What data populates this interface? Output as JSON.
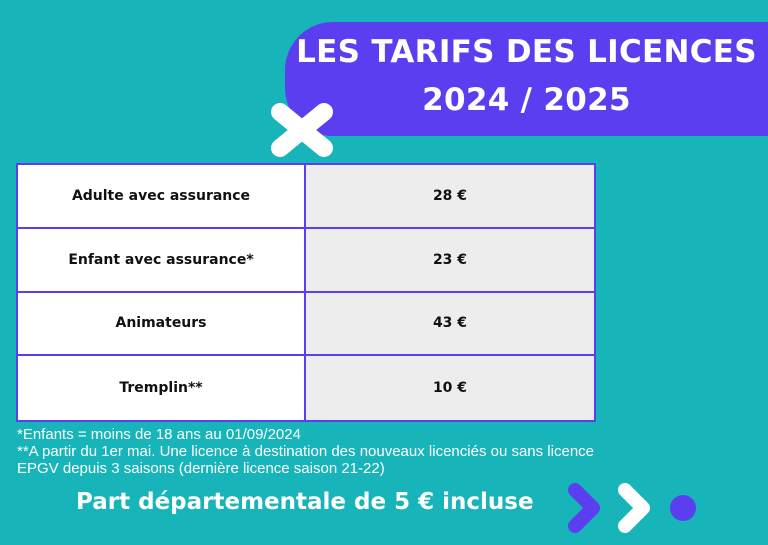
{
  "title": {
    "line1": "LES TARIFS DES LICENCES",
    "line2": "2024 / 2025"
  },
  "table": {
    "rows": [
      {
        "label": "Adulte avec assurance",
        "value": "28 €"
      },
      {
        "label": "Enfant avec assurance*",
        "value": "23 €"
      },
      {
        "label": "Animateurs",
        "value": "43 €"
      },
      {
        "label": "Tremplin**",
        "value": "10 €"
      }
    ]
  },
  "notes": {
    "line1": "*Enfants = moins de 18 ans au 01/09/2024",
    "line2": "**A partir du 1er mai. Une licence à destination des nouveaux licenciés ou sans licence",
    "line3": "EPGV depuis 3 saisons (dernière licence saison 21-22)"
  },
  "footer": {
    "text": "Part départementale de 5 € incluse"
  },
  "colors": {
    "background": "#17b5b9",
    "accent": "#5b3ef0",
    "cell_alt": "#ededed"
  },
  "icons": {
    "cross": "cross-icon",
    "arrows": "double-chevron-right-icon",
    "dot": "dot-icon"
  }
}
